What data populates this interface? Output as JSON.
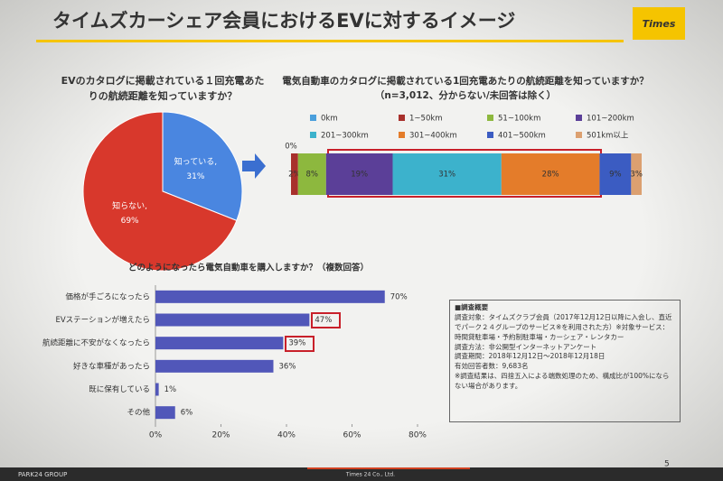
{
  "slide": {
    "title": "タイムズカーシェア会員におけるEVに対するイメージ",
    "logo": "Times",
    "survey": {
      "heading": "■調査概要",
      "lines": [
        "調査対象：タイムズクラブ会員（2017年12月12日以降に入会し、直近でパーク２４グループのサービス※を利用された方）※対象サービス：時間貸駐車場・予約制駐車場・カーシェア・レンタカー",
        "調査方法：非公開型インターネットアンケート",
        "調査期間：2018年12月12日～2018年12月18日",
        "有効回答者数：9,683名",
        "※調査結果は、四捨五入による端数処理のため、構成比が100%にならない場合があります。"
      ]
    },
    "footer_left": "PARK24 GROUP",
    "footer_center": "Times 24 Co., Ltd.",
    "page": "5"
  },
  "chart_data": [
    {
      "type": "pie",
      "title": [
        "EVのカタログに掲載されている１回充電あた",
        "りの航続距離を知っていますか？"
      ],
      "categories": [
        "知っている,",
        "知らない,"
      ],
      "values": [
        31,
        69
      ],
      "value_labels": [
        "31%",
        "69%"
      ],
      "colors": [
        "#4a86e0",
        "#d8382c"
      ]
    },
    {
      "type": "stacked-bar",
      "title": [
        "電気自動車のカタログに掲載されている1回充電あたりの航続距離を知っていますか？",
        "（n=3,012、分からない/未回答は除く）"
      ],
      "series": [
        {
          "name": "0km",
          "color": "#4a9fdc",
          "values": [
            0
          ],
          "value_labels": [
            "0%"
          ]
        },
        {
          "name": "1~50km",
          "color": "#a8302c",
          "values": [
            2
          ],
          "value_labels": [
            "2%"
          ]
        },
        {
          "name": "51~100km",
          "color": "#8db83e",
          "values": [
            8
          ],
          "value_labels": [
            "8%"
          ]
        },
        {
          "name": "101~200km",
          "color": "#5b3f98",
          "values": [
            19
          ],
          "value_labels": [
            "19%"
          ]
        },
        {
          "name": "201~300km",
          "color": "#3cb2cc",
          "values": [
            31
          ],
          "value_labels": [
            "31%"
          ]
        },
        {
          "name": "301~400km",
          "color": "#e47c2a",
          "values": [
            28
          ],
          "value_labels": [
            "28%"
          ]
        },
        {
          "name": "401~500km",
          "color": "#3b5cc2",
          "values": [
            9
          ],
          "value_labels": [
            "9%"
          ]
        },
        {
          "name": "501km以上",
          "color": "#dca070",
          "values": [
            3
          ],
          "value_labels": [
            "3%"
          ]
        }
      ]
    },
    {
      "type": "hbar",
      "title": "どのようになったら電気自動車を購入しますか？（複数回答）",
      "categories": [
        "価格が手ごろになったら",
        "EVステーションが増えたら",
        "航続距離に不安がなくなったら",
        "好きな車種があったら",
        "既に保有している",
        "その他"
      ],
      "values": [
        70,
        47,
        39,
        36,
        1,
        6
      ],
      "value_labels": [
        "70%",
        "47%",
        "39%",
        "36%",
        "1%",
        "6%"
      ],
      "color": "#5157b9",
      "xlim": [
        0,
        80
      ],
      "xticks": [
        {
          "value": 0,
          "label": "0%"
        },
        {
          "value": 20,
          "label": "20%"
        },
        {
          "value": 40,
          "label": "40%"
        },
        {
          "value": 60,
          "label": "60%"
        },
        {
          "value": 80,
          "label": "80%"
        }
      ]
    }
  ]
}
